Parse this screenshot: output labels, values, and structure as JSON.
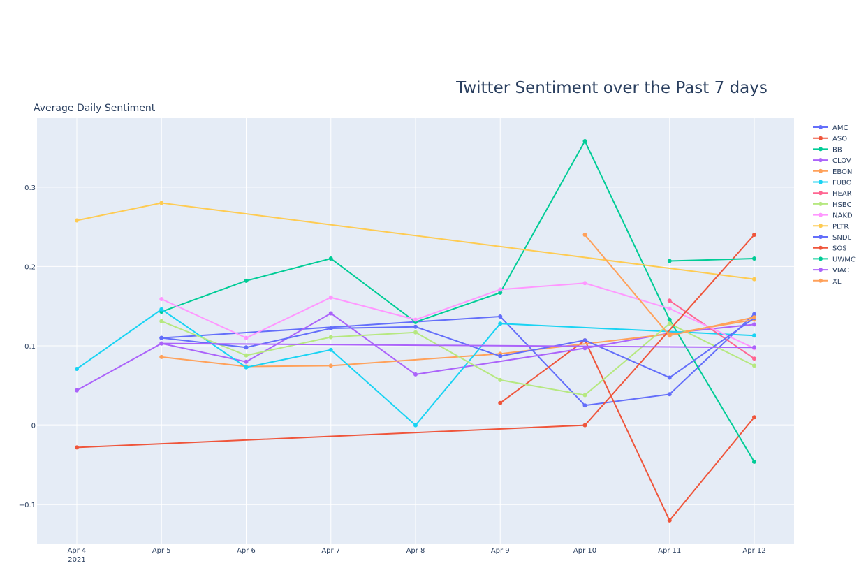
{
  "chart_data": {
    "type": "line",
    "title": "Twitter Sentiment over the Past 7 days",
    "ylabel": "Average Daily Sentiment",
    "xlabel": "",
    "x": [
      "Apr 4",
      "Apr 5",
      "Apr 6",
      "Apr 7",
      "Apr 8",
      "Apr 9",
      "Apr 10",
      "Apr 11",
      "Apr 12"
    ],
    "x_tick_labels": [
      "Apr 4",
      "Apr 5",
      "Apr 6",
      "Apr 7",
      "Apr 8",
      "Apr 9",
      "Apr 10",
      "Apr 11",
      "Apr 12"
    ],
    "x_year_label": "2021",
    "ylim": [
      -0.15,
      0.387
    ],
    "y_ticks": [
      -0.1,
      0,
      0.1,
      0.2,
      0.3
    ],
    "y_tick_labels": [
      "−0.1",
      "0",
      "0.1",
      "0.2",
      "0.3"
    ],
    "grid": true,
    "legend_position": "right",
    "plot_bgcolor": "#e5ecf6",
    "series": [
      {
        "name": "AMC",
        "color": "#636efa",
        "values": [
          null,
          0.11,
          null,
          null,
          null,
          0.137,
          0.025,
          0.039,
          0.14
        ]
      },
      {
        "name": "ASO",
        "color": "#ef553b",
        "values": [
          null,
          null,
          null,
          null,
          null,
          0.028,
          0.107,
          -0.12,
          0.01
        ]
      },
      {
        "name": "BB",
        "color": "#00cc96",
        "values": [
          null,
          0.143,
          0.182,
          0.21,
          0.13,
          0.167,
          0.358,
          0.133,
          -0.046
        ]
      },
      {
        "name": "CLOV",
        "color": "#ab63fa",
        "values": [
          0.044,
          0.103,
          0.08,
          0.141,
          0.064,
          null,
          0.097,
          0.116,
          0.127
        ]
      },
      {
        "name": "EBON",
        "color": "#ffa15a",
        "values": [
          null,
          0.086,
          0.074,
          0.075,
          null,
          0.09,
          null,
          0.115,
          0.133
        ]
      },
      {
        "name": "FUBO",
        "color": "#19d3f3",
        "values": [
          0.071,
          0.146,
          0.073,
          0.095,
          0.0,
          0.128,
          null,
          null,
          0.113
        ]
      },
      {
        "name": "HEAR",
        "color": "#ff6692",
        "values": [
          null,
          null,
          null,
          null,
          null,
          null,
          null,
          0.157,
          0.084
        ]
      },
      {
        "name": "HSBC",
        "color": "#b6e880",
        "values": [
          null,
          0.131,
          0.088,
          0.111,
          0.117,
          0.057,
          0.038,
          0.128,
          0.075
        ]
      },
      {
        "name": "NAKD",
        "color": "#ff97ff",
        "values": [
          null,
          0.159,
          0.11,
          0.161,
          0.133,
          0.171,
          0.179,
          0.147,
          0.097
        ]
      },
      {
        "name": "PLTR",
        "color": "#fecb52",
        "values": [
          0.258,
          0.28,
          null,
          null,
          null,
          null,
          null,
          null,
          0.184
        ]
      },
      {
        "name": "SNDL",
        "color": "#636efa",
        "values": [
          null,
          0.11,
          0.098,
          0.122,
          0.124,
          0.087,
          0.107,
          0.06,
          0.135
        ]
      },
      {
        "name": "SOS",
        "color": "#ef553b",
        "values": [
          -0.028,
          null,
          null,
          null,
          null,
          null,
          0.0,
          null,
          0.24
        ]
      },
      {
        "name": "UWMC",
        "color": "#00cc96",
        "values": [
          null,
          null,
          null,
          null,
          null,
          null,
          null,
          0.207,
          0.21
        ]
      },
      {
        "name": "VIAC",
        "color": "#ab63fa",
        "values": [
          null,
          0.103,
          null,
          null,
          null,
          null,
          null,
          null,
          0.098
        ]
      },
      {
        "name": "XL",
        "color": "#ffa15a",
        "values": [
          null,
          null,
          null,
          null,
          null,
          null,
          0.24,
          0.113,
          0.136
        ]
      }
    ]
  }
}
